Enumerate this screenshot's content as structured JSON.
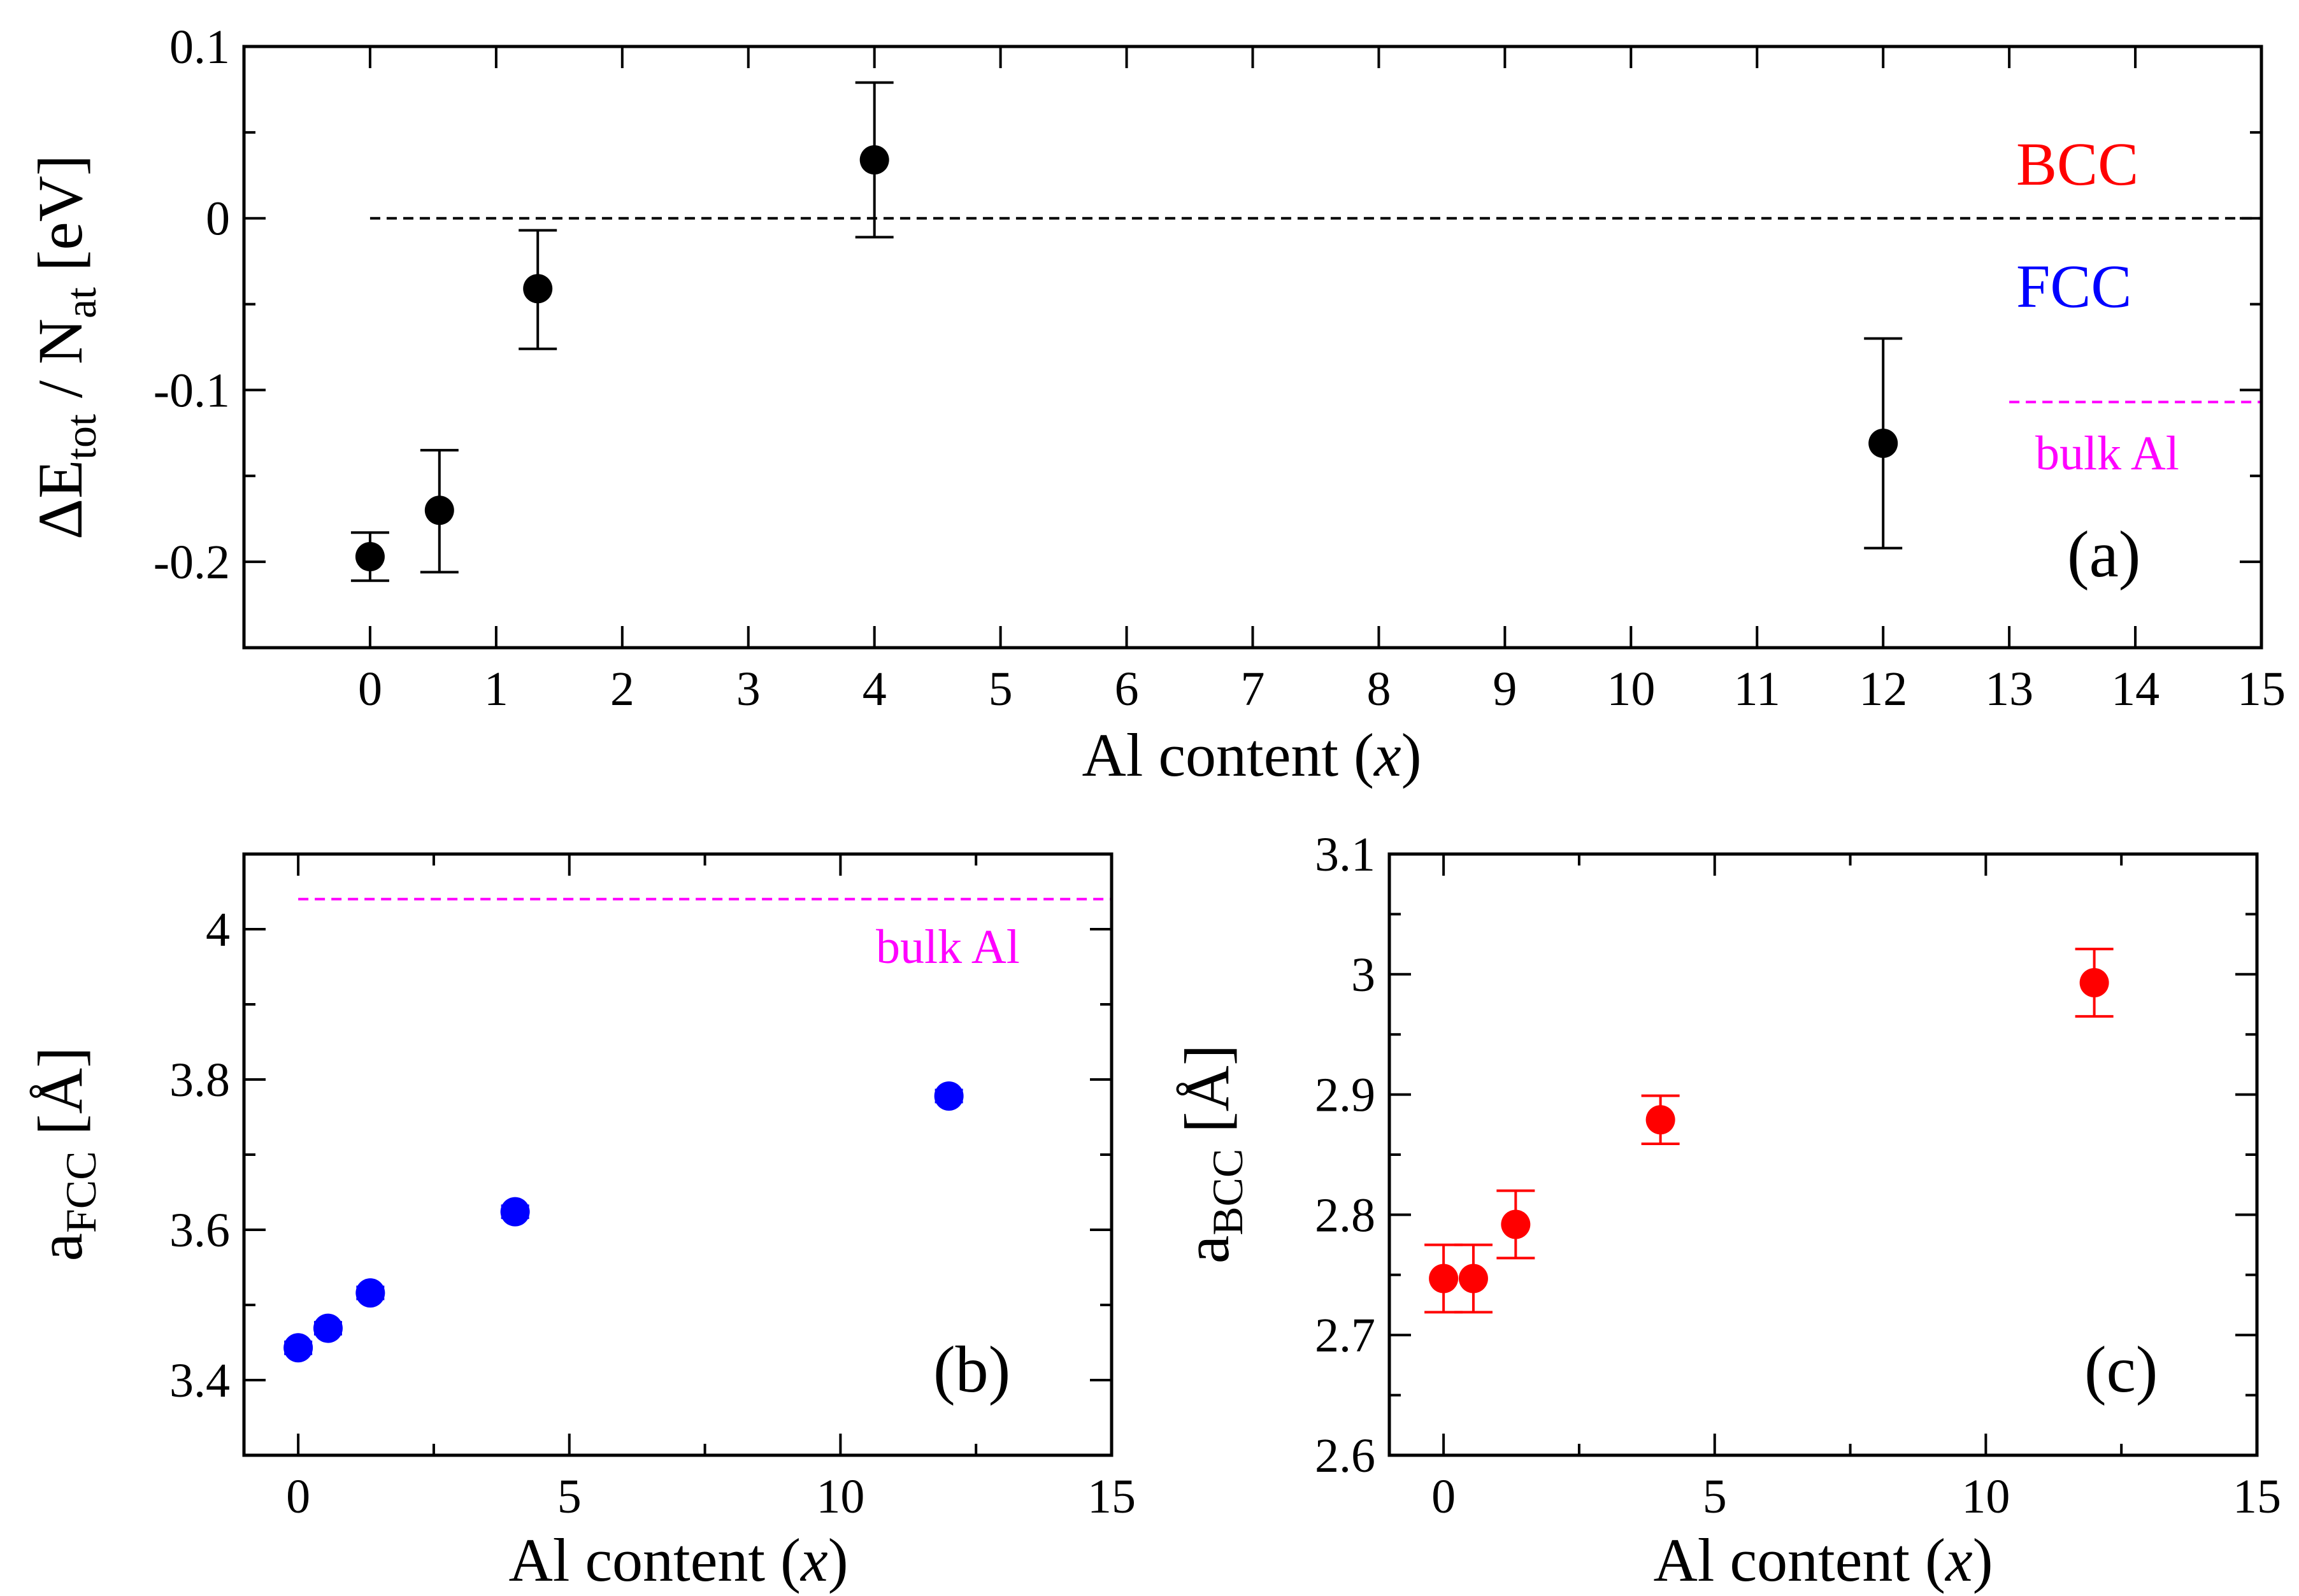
{
  "chart_data": [
    {
      "panel": "a",
      "type": "scatter",
      "panel_label": "(a)",
      "xlabel": "Al content",
      "xlabel_var": "x",
      "ylabel": {
        "delta": "ΔE",
        "sub1": "tot",
        "mid": " / N",
        "sub2": "at",
        "unit": " [eV]"
      },
      "xlim": [
        -1.0,
        15.0
      ],
      "ylim": [
        -0.25,
        0.1
      ],
      "xticks": [
        0,
        1,
        2,
        3,
        4,
        5,
        6,
        7,
        8,
        9,
        10,
        11,
        12,
        13,
        14,
        15
      ],
      "xtick_labels": [
        "0",
        "1",
        "2",
        "3",
        "4",
        "5",
        "6",
        "7",
        "8",
        "9",
        "10",
        "11",
        "12",
        "13",
        "14",
        "15"
      ],
      "yticks": [
        0.1,
        0,
        -0.1,
        -0.2
      ],
      "ytick_labels": [
        "0.1",
        "0",
        "-0.1",
        "-0.2"
      ],
      "minor_yticks": [
        0.05,
        -0.05,
        -0.15
      ],
      "color": "#000000",
      "points": [
        {
          "x": 0.0,
          "y": -0.197,
          "err_low": -0.211,
          "err_high": -0.183
        },
        {
          "x": 0.55,
          "y": -0.17,
          "err_low": -0.206,
          "err_high": -0.135
        },
        {
          "x": 1.33,
          "y": -0.041,
          "err_low": -0.076,
          "err_high": -0.007
        },
        {
          "x": 4.0,
          "y": 0.034,
          "err_low": -0.011,
          "err_high": 0.079
        },
        {
          "x": 12.0,
          "y": -0.131,
          "err_low": -0.192,
          "err_high": -0.07
        }
      ],
      "reference_line": {
        "y": 0.0,
        "x_start": 0.0,
        "x_end": 15.0,
        "color": "#000000"
      },
      "bulk_line": {
        "y": -0.107,
        "x_start": 13.0,
        "x_end": 15.0,
        "color": "#ff00ff",
        "label": "bulk Al"
      },
      "region_labels": [
        {
          "text": "BCC",
          "color": "#ff0000"
        },
        {
          "text": "FCC",
          "color": "#0000ff"
        }
      ]
    },
    {
      "panel": "b",
      "type": "scatter",
      "panel_label": "(b)",
      "xlabel": "Al content",
      "xlabel_var": "x",
      "ylabel": {
        "base": "a",
        "sub": "FCC",
        "unit": " [Å]"
      },
      "xlim": [
        -1.0,
        15.0
      ],
      "ylim": [
        3.3,
        4.1
      ],
      "xticks": [
        0,
        5,
        10,
        15
      ],
      "xtick_labels": [
        "0",
        "5",
        "10",
        "15"
      ],
      "minor_xticks": [
        2.5,
        7.5,
        12.5
      ],
      "yticks": [
        3.4,
        3.6,
        3.8,
        4.0
      ],
      "ytick_labels": [
        "3.4",
        "3.6",
        "3.8",
        "4"
      ],
      "minor_yticks": [
        3.5,
        3.7,
        3.9
      ],
      "color": "#0000ff",
      "points": [
        {
          "x": 0.0,
          "y": 3.443,
          "err_low": 3.435,
          "err_high": 3.451
        },
        {
          "x": 0.55,
          "y": 3.469,
          "err_low": 3.461,
          "err_high": 3.477
        },
        {
          "x": 1.33,
          "y": 3.516,
          "err_low": 3.508,
          "err_high": 3.524
        },
        {
          "x": 4.0,
          "y": 3.624,
          "err_low": 3.616,
          "err_high": 3.632
        },
        {
          "x": 12.0,
          "y": 3.778,
          "err_low": 3.77,
          "err_high": 3.786
        }
      ],
      "bulk_line": {
        "y": 4.04,
        "x_start": 0.0,
        "x_end": 15.0,
        "color": "#ff00ff",
        "label": "bulk Al"
      }
    },
    {
      "panel": "c",
      "type": "scatter",
      "panel_label": "(c)",
      "xlabel": "Al content",
      "xlabel_var": "x",
      "ylabel": {
        "base": "a",
        "sub": "BCC",
        "unit": " [Å]"
      },
      "xlim": [
        -1.0,
        15.0
      ],
      "ylim": [
        2.6,
        3.1
      ],
      "xticks": [
        0,
        5,
        10,
        15
      ],
      "xtick_labels": [
        "0",
        "5",
        "10",
        "15"
      ],
      "minor_xticks": [
        2.5,
        7.5,
        12.5
      ],
      "yticks": [
        2.6,
        2.7,
        2.8,
        2.9,
        3.0,
        3.1
      ],
      "ytick_labels": [
        "2.6",
        "2.7",
        "2.8",
        "2.9",
        "3",
        "3.1"
      ],
      "minor_yticks": [
        2.65,
        2.75,
        2.85,
        2.95,
        3.05
      ],
      "color": "#ff0000",
      "points": [
        {
          "x": 0.0,
          "y": 2.747,
          "err_low": 2.719,
          "err_high": 2.775
        },
        {
          "x": 0.55,
          "y": 2.747,
          "err_low": 2.719,
          "err_high": 2.775
        },
        {
          "x": 1.33,
          "y": 2.792,
          "err_low": 2.764,
          "err_high": 2.82
        },
        {
          "x": 4.0,
          "y": 2.879,
          "err_low": 2.859,
          "err_high": 2.899
        },
        {
          "x": 12.0,
          "y": 2.993,
          "err_low": 2.965,
          "err_high": 3.021
        }
      ]
    }
  ]
}
